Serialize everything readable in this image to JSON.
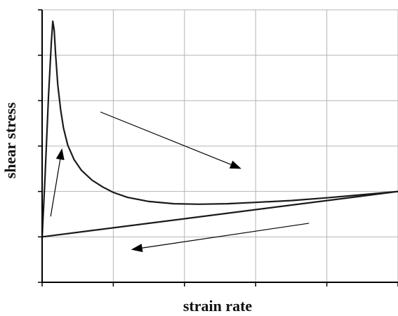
{
  "chart_data": {
    "type": "line",
    "title": "",
    "xlabel": "strain rate",
    "ylabel": "shear stress",
    "xlim": [
      0,
      5
    ],
    "ylim": [
      0,
      6
    ],
    "grid": true,
    "x_ticks": [
      0,
      1,
      2,
      3,
      4,
      5
    ],
    "y_ticks": [
      0,
      1,
      2,
      3,
      4,
      5,
      6
    ],
    "series": [
      {
        "style": "thixotropic-upcurve",
        "x": [
          0.0,
          0.04,
          0.09,
          0.13,
          0.15,
          0.17,
          0.19,
          0.22,
          0.26,
          0.3,
          0.36,
          0.45,
          0.55,
          0.7,
          0.85,
          1.0,
          1.2,
          1.5,
          1.85,
          2.2,
          2.6,
          3.0,
          3.5,
          4.0,
          4.5,
          5.0
        ],
        "y": [
          0.98,
          2.3,
          4.1,
          5.3,
          5.75,
          5.55,
          5.0,
          4.35,
          3.8,
          3.4,
          3.02,
          2.7,
          2.47,
          2.25,
          2.1,
          1.98,
          1.87,
          1.78,
          1.73,
          1.72,
          1.73,
          1.76,
          1.8,
          1.86,
          1.93,
          2.0
        ]
      },
      {
        "style": "downcurve",
        "x": [
          0,
          5
        ],
        "y": [
          1.0,
          2.0
        ]
      }
    ],
    "arrows": [
      {
        "from": [
          0.12,
          1.45
        ],
        "to": [
          0.28,
          2.95
        ]
      },
      {
        "from": [
          0.82,
          3.75
        ],
        "to": [
          2.8,
          2.5
        ]
      },
      {
        "from": [
          3.75,
          1.3
        ],
        "to": [
          1.25,
          0.72
        ]
      }
    ]
  }
}
